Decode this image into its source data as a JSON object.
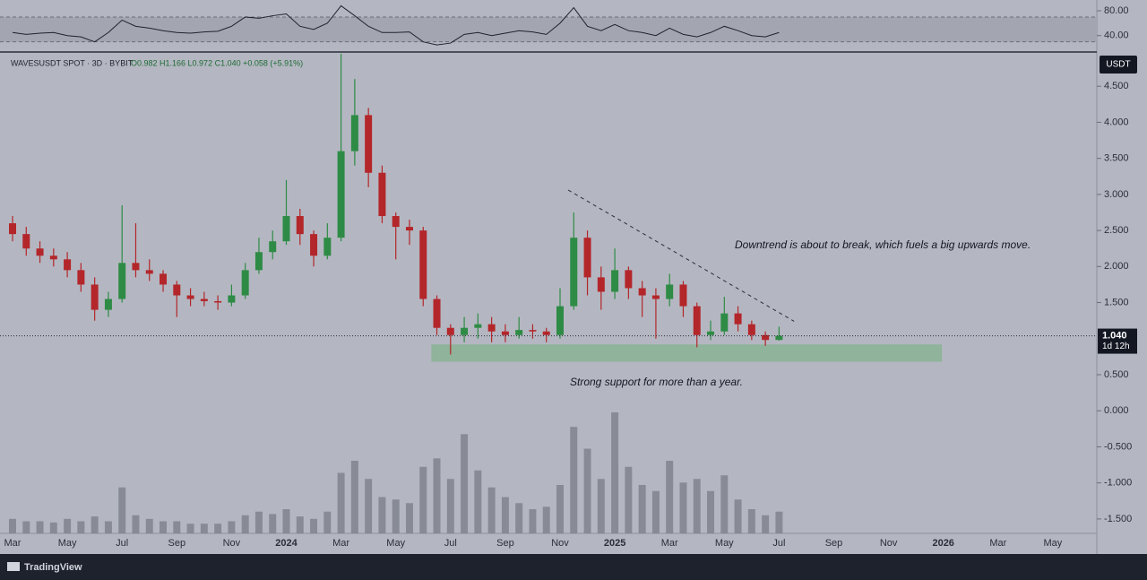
{
  "chart_data": {
    "type": "candlestick",
    "title": "WAVESUSDT SPOT · 3D · BYBIT",
    "ohlc_text": "O0.982 H1.166 L0.972 C1.040 +0.058 (+5.91%)",
    "currency": "USDT",
    "last_price_label": "1.040",
    "countdown": "1d 12h",
    "brand": "TradingView",
    "colors": {
      "up": "#2e8b45",
      "down": "#b3262a",
      "volume": "#80848e",
      "rsi": "#1f232e",
      "zone": "#8fb39b"
    },
    "xticks": [
      "Mar",
      "May",
      "Jul",
      "Sep",
      "Nov",
      "2024",
      "Mar",
      "May",
      "Jul",
      "Sep",
      "Nov",
      "2025",
      "Mar",
      "May",
      "Jul",
      "Sep",
      "Nov",
      "2026",
      "Mar",
      "May"
    ],
    "open": [
      2.6,
      2.45,
      2.25,
      2.15,
      2.1,
      1.95,
      1.75,
      1.4,
      1.55,
      2.05,
      1.95,
      1.9,
      1.75,
      1.6,
      1.55,
      1.52,
      1.5,
      1.6,
      1.95,
      2.2,
      2.35,
      2.7,
      2.45,
      2.15,
      2.4,
      3.6,
      4.1,
      3.3,
      2.7,
      2.55,
      2.5,
      1.55,
      1.15,
      1.05,
      1.15,
      1.2,
      1.1,
      1.05,
      1.12,
      1.1,
      1.05,
      1.45,
      2.4,
      1.85,
      1.65,
      1.95,
      1.7,
      1.6,
      1.55,
      1.75,
      1.45,
      1.05,
      1.1,
      1.35,
      1.2,
      1.05,
      0.982
    ],
    "high": [
      2.7,
      2.55,
      2.35,
      2.25,
      2.2,
      2.05,
      1.85,
      1.65,
      2.85,
      2.6,
      2.1,
      1.95,
      1.8,
      1.7,
      1.65,
      1.6,
      1.75,
      2.05,
      2.4,
      2.5,
      3.2,
      2.8,
      2.5,
      2.6,
      4.95,
      4.6,
      4.2,
      3.4,
      2.75,
      2.65,
      2.55,
      1.6,
      1.2,
      1.3,
      1.35,
      1.3,
      1.2,
      1.3,
      1.2,
      1.15,
      1.7,
      2.75,
      2.5,
      2.0,
      2.25,
      2.0,
      1.8,
      1.7,
      1.9,
      1.8,
      1.5,
      1.25,
      1.58,
      1.45,
      1.25,
      1.1,
      1.166
    ],
    "low": [
      2.35,
      2.15,
      2.05,
      2.0,
      1.85,
      1.65,
      1.25,
      1.3,
      1.5,
      1.85,
      1.8,
      1.65,
      1.3,
      1.45,
      1.45,
      1.4,
      1.45,
      1.55,
      1.9,
      2.1,
      2.3,
      2.3,
      2.0,
      2.1,
      2.35,
      3.4,
      3.1,
      2.6,
      2.1,
      2.3,
      1.45,
      1.05,
      0.78,
      0.95,
      1.0,
      0.95,
      0.95,
      1.0,
      1.0,
      0.95,
      1.0,
      1.4,
      1.6,
      1.4,
      1.55,
      1.55,
      1.3,
      1.0,
      1.45,
      1.3,
      0.88,
      0.98,
      1.05,
      1.1,
      0.98,
      0.9,
      0.972
    ],
    "close": [
      2.45,
      2.25,
      2.15,
      2.1,
      1.95,
      1.75,
      1.4,
      1.55,
      2.05,
      1.95,
      1.9,
      1.75,
      1.6,
      1.55,
      1.52,
      1.5,
      1.6,
      1.95,
      2.2,
      2.35,
      2.7,
      2.45,
      2.15,
      2.4,
      3.6,
      4.1,
      3.3,
      2.7,
      2.55,
      2.5,
      1.55,
      1.15,
      1.05,
      1.15,
      1.2,
      1.1,
      1.05,
      1.12,
      1.1,
      1.05,
      1.45,
      2.4,
      1.85,
      1.65,
      1.95,
      1.7,
      1.6,
      1.55,
      1.75,
      1.45,
      1.05,
      1.1,
      1.35,
      1.2,
      1.05,
      0.982,
      1.04
    ],
    "volume": [
      12,
      10,
      10,
      9,
      12,
      10,
      14,
      10,
      38,
      15,
      12,
      10,
      10,
      8,
      8,
      8,
      10,
      15,
      18,
      16,
      20,
      14,
      12,
      18,
      50,
      60,
      45,
      30,
      28,
      25,
      55,
      62,
      45,
      82,
      52,
      38,
      30,
      25,
      20,
      22,
      40,
      88,
      70,
      45,
      100,
      55,
      40,
      35,
      60,
      42,
      45,
      35,
      48,
      28,
      20,
      15,
      18
    ],
    "ylim": [
      -1.7,
      4.95
    ],
    "yticks": [
      {
        "value": 4.5,
        "label": "4.500"
      },
      {
        "value": 4.0,
        "label": "4.000"
      },
      {
        "value": 3.5,
        "label": "3.500"
      },
      {
        "value": 3.0,
        "label": "3.000"
      },
      {
        "value": 2.5,
        "label": "2.500"
      },
      {
        "value": 2.0,
        "label": "2.000"
      },
      {
        "value": 1.5,
        "label": "1.500"
      },
      {
        "value": 0.5,
        "label": "0.500"
      },
      {
        "value": 0,
        "label": "0.000"
      },
      {
        "value": -0.5,
        "label": "-0.500"
      },
      {
        "value": -1.0,
        "label": "-1.000"
      },
      {
        "value": -1.5,
        "label": "-1.500"
      }
    ],
    "support_zone": [
      0.68,
      0.92
    ],
    "trendline": [
      3.06,
      1.24
    ],
    "annotations": [
      "Downtrend is about to break, which fuels a big upwards move.",
      "Strong support for more than a year."
    ],
    "rsi": {
      "values": [
        45,
        42,
        44,
        45,
        40,
        38,
        30,
        45,
        65,
        55,
        52,
        48,
        45,
        44,
        46,
        47,
        55,
        70,
        68,
        72,
        75,
        55,
        50,
        60,
        88,
        72,
        55,
        45,
        45,
        46,
        30,
        25,
        28,
        42,
        45,
        40,
        44,
        48,
        46,
        42,
        60,
        85,
        55,
        48,
        58,
        48,
        45,
        40,
        52,
        42,
        38,
        45,
        55,
        48,
        40,
        38,
        45
      ],
      "ylim": [
        18,
        93
      ],
      "yticks": [
        {
          "value": 80,
          "label": "80.00"
        },
        {
          "value": 40,
          "label": "40.00"
        }
      ],
      "band": [
        30,
        70
      ]
    }
  }
}
